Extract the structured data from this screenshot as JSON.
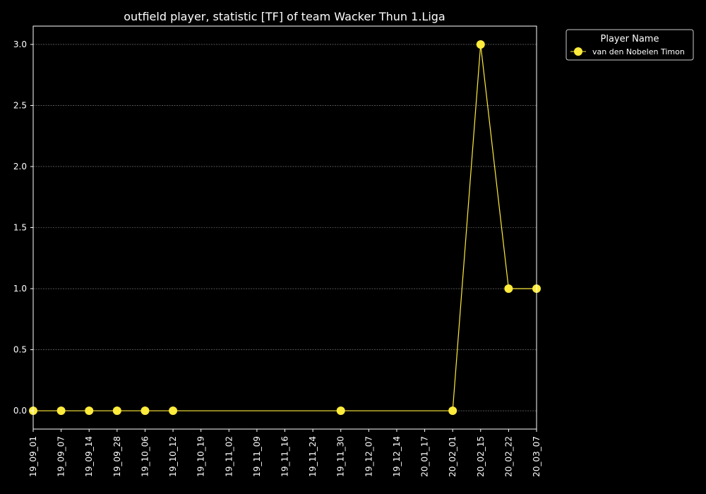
{
  "chart_data": {
    "type": "line",
    "title": "outfield player, statistic [TF] of team Wacker Thun 1.Liga",
    "xlabel": "",
    "ylabel": "",
    "ylim": [
      -0.15,
      3.15
    ],
    "y_ticks": [
      "0.0",
      "0.5",
      "1.0",
      "1.5",
      "2.0",
      "2.5",
      "3.0"
    ],
    "categories": [
      "19_09_01",
      "19_09_07",
      "19_09_14",
      "19_09_28",
      "19_10_06",
      "19_10_12",
      "19_10_19",
      "19_11_02",
      "19_11_09",
      "19_11_16",
      "19_11_24",
      "19_11_30",
      "19_12_07",
      "19_12_14",
      "20_01_17",
      "20_02_01",
      "20_02_15",
      "20_02_22",
      "20_03_07"
    ],
    "grid": "horizontal",
    "legend": {
      "title": "Player Name",
      "placement": "outside-top-right"
    },
    "background": "#000000",
    "series": [
      {
        "name": "van den Nobelen Timon",
        "color": "#ffeb3b",
        "values": [
          0,
          0,
          0,
          0,
          0,
          0,
          null,
          null,
          null,
          null,
          null,
          0,
          null,
          null,
          null,
          0,
          3,
          1,
          1
        ]
      }
    ]
  }
}
